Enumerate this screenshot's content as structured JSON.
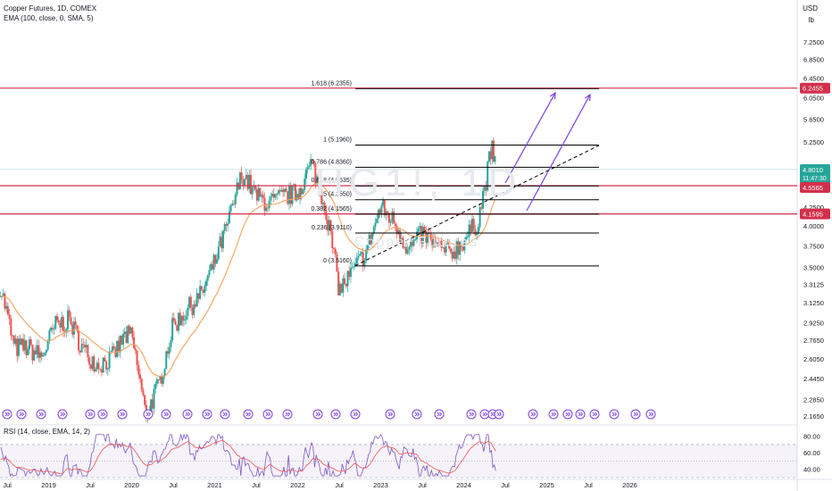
{
  "header": {
    "title": "Copper Futures, 1D, COMEX",
    "indicator": "EMA (100, close, 0, SMA, 5)",
    "rsi_label": "RSI (14, close, EMA, 14, 2)"
  },
  "axis": {
    "currency": "USD",
    "unit": "lb",
    "price_ticks": [
      "7.2500",
      "6.8500",
      "6.4500",
      "6.0500",
      "5.6500",
      "5.2500",
      "4.2500",
      "4.0000",
      "3.7500",
      "3.5000",
      "3.3125",
      "3.1250",
      "2.9250",
      "2.7650",
      "2.6050",
      "2.4450",
      "2.2850",
      "2.1650"
    ],
    "time_ticks": [
      "Jul",
      "2019",
      "Jul",
      "2020",
      "Jul",
      "2021",
      "Jul",
      "2022",
      "Jul",
      "2023",
      "Jul",
      "2024",
      "Jul",
      "2025",
      "Jul",
      "2026"
    ],
    "rsi_ticks": [
      "80.00",
      "60.00",
      "40.00"
    ]
  },
  "badges": {
    "fib_target": "6.2455",
    "current_price": "4.8010",
    "countdown": "11:47:30",
    "resistance": "4.5565",
    "support": "4.1595"
  },
  "watermark": {
    "symbol": "HG1!, 1D",
    "name": "Copper Futures"
  },
  "colors": {
    "candle_up": "#26a69a",
    "candle_down": "#ef5350",
    "ema": "#f4a261",
    "hline": "#d32f4b",
    "fib": "#000000",
    "arrow": "#7b3fe4",
    "rsi": "#7e57c2",
    "rsi_ma": "#ef5350",
    "event_icon": "#7b3fe4"
  },
  "chart_data": {
    "type": "candlestick",
    "title": "Copper Futures, 1D, COMEX",
    "x_range": [
      "2018-07",
      "2026-05"
    ],
    "y_range": [
      2.165,
      7.25
    ],
    "log_scale": true,
    "price_path": [
      {
        "t": "2018-06",
        "p": 3.3
      },
      {
        "t": "2018-08",
        "p": 2.7
      },
      {
        "t": "2018-10",
        "p": 2.7
      },
      {
        "t": "2018-12",
        "p": 2.62
      },
      {
        "t": "2019-02",
        "p": 2.9
      },
      {
        "t": "2019-04",
        "p": 2.95
      },
      {
        "t": "2019-06",
        "p": 2.68
      },
      {
        "t": "2019-08",
        "p": 2.56
      },
      {
        "t": "2019-10",
        "p": 2.6
      },
      {
        "t": "2019-12",
        "p": 2.8
      },
      {
        "t": "2020-01",
        "p": 2.8
      },
      {
        "t": "2020-03",
        "p": 2.17
      },
      {
        "t": "2020-05",
        "p": 2.4
      },
      {
        "t": "2020-07",
        "p": 2.9
      },
      {
        "t": "2020-09",
        "p": 3.05
      },
      {
        "t": "2020-11",
        "p": 3.2
      },
      {
        "t": "2021-01",
        "p": 3.55
      },
      {
        "t": "2021-03",
        "p": 4.05
      },
      {
        "t": "2021-05",
        "p": 4.75
      },
      {
        "t": "2021-07",
        "p": 4.4
      },
      {
        "t": "2021-09",
        "p": 4.3
      },
      {
        "t": "2021-11",
        "p": 4.4
      },
      {
        "t": "2022-01",
        "p": 4.45
      },
      {
        "t": "2022-03",
        "p": 4.9
      },
      {
        "t": "2022-05",
        "p": 4.25
      },
      {
        "t": "2022-07",
        "p": 3.25
      },
      {
        "t": "2022-09",
        "p": 3.45
      },
      {
        "t": "2022-11",
        "p": 3.7
      },
      {
        "t": "2023-01",
        "p": 4.25
      },
      {
        "t": "2023-03",
        "p": 4.05
      },
      {
        "t": "2023-05",
        "p": 3.7
      },
      {
        "t": "2023-07",
        "p": 3.9
      },
      {
        "t": "2023-09",
        "p": 3.75
      },
      {
        "t": "2023-11",
        "p": 3.65
      },
      {
        "t": "2024-01",
        "p": 3.82
      },
      {
        "t": "2024-03",
        "p": 4.05
      },
      {
        "t": "2024-04",
        "p": 4.5
      },
      {
        "t": "2024-05",
        "p": 5.15
      },
      {
        "t": "2024-05",
        "p": 4.8
      }
    ],
    "ema_label": "EMA (100, close, 0, SMA, 5)",
    "fib_levels": [
      {
        "ratio": "1.618",
        "value": 6.2355,
        "label": "1.618 (6.2355)"
      },
      {
        "ratio": "1",
        "value": 5.196,
        "label": "1 (5.1960)"
      },
      {
        "ratio": "0.786",
        "value": 4.836,
        "label": "0.786 (4.8360)"
      },
      {
        "ratio": "0.618",
        "value": 4.5535,
        "label": "0.618 (4.5535)"
      },
      {
        "ratio": "0.5",
        "value": 4.355,
        "label": "0.5 (4.3550)"
      },
      {
        "ratio": "0.382",
        "value": 4.1565,
        "label": "0.382 (4.1565)"
      },
      {
        "ratio": "0.236",
        "value": 3.911,
        "label": "0.236 (3.9110)"
      },
      {
        "ratio": "0",
        "value": 3.516,
        "label": "0 (3.5160)"
      }
    ],
    "horizontal_lines": [
      6.2455,
      4.5565,
      4.1595
    ],
    "rsi_range": [
      30,
      85
    ]
  }
}
